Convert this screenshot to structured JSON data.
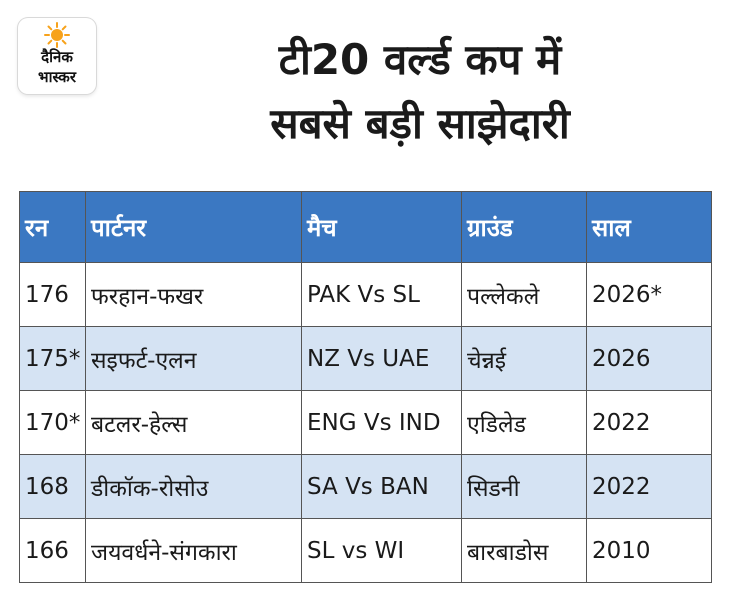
{
  "logo": {
    "line1": "दैनिक",
    "line2": "भास्कर",
    "sun_color": "#f7a21b"
  },
  "title": {
    "line1": "टी20 वर्ल्ड कप में",
    "line2": "सबसे बड़ी साझेदारी"
  },
  "colors": {
    "header_bg": "#3b78c2",
    "stripe_bg": "#d5e3f3"
  },
  "table": {
    "headers": [
      "रन",
      "पार्टनर",
      "मैच",
      "ग्राउंड",
      "साल"
    ],
    "rows": [
      [
        "176",
        "फरहान-फखर",
        "PAK Vs SL",
        "पल्लेकले",
        "2026*"
      ],
      [
        "175*",
        "सइफर्ट-एलन",
        "NZ Vs UAE",
        "चेन्नई",
        "2026"
      ],
      [
        "170*",
        "बटलर-हेल्स",
        "ENG Vs IND",
        "एडिलेड",
        "2022"
      ],
      [
        "168",
        "डीकॉक-रोसोउ",
        "SA Vs BAN",
        "सिडनी",
        "2022"
      ],
      [
        "166",
        "जयवर्धने-संगकारा",
        "SL vs WI",
        "बारबाडोस",
        "2010"
      ]
    ]
  }
}
